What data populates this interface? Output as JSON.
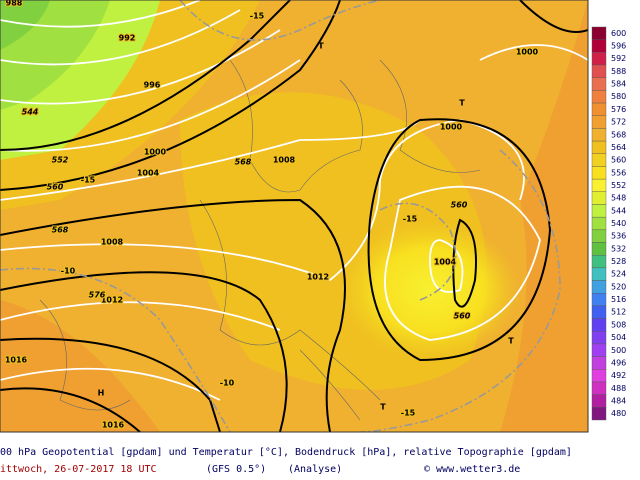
{
  "map": {
    "labels": [
      "988",
      "992",
      "996",
      "1000",
      "1004",
      "1008",
      "1012",
      "1016",
      "1016",
      "1008",
      "1012",
      "1000",
      "1000",
      "1004",
      "544",
      "552",
      "560",
      "568",
      "576",
      "568",
      "560",
      "560",
      "-15",
      "-15",
      "-10",
      "-15",
      "-15",
      "-10",
      "T",
      "T",
      "T",
      "T",
      "H"
    ]
  },
  "colorbar": {
    "levels": [
      600,
      596,
      592,
      588,
      584,
      580,
      576,
      572,
      568,
      564,
      560,
      556,
      552,
      548,
      544,
      540,
      536,
      532,
      528,
      524,
      520,
      516,
      512,
      508,
      504,
      500,
      496,
      492,
      488,
      484,
      480
    ],
    "colors": [
      "#8b0030",
      "#b0003a",
      "#d0204a",
      "#e05050",
      "#e87050",
      "#f08040",
      "#f09030",
      "#f0a030",
      "#f0b030",
      "#f0c020",
      "#f0d020",
      "#f8e020",
      "#f8f030",
      "#e0f030",
      "#c0f040",
      "#a0e040",
      "#80d040",
      "#60c040",
      "#40c080",
      "#40c0c0",
      "#40a0e0",
      "#4080f0",
      "#4060f0",
      "#6040f0",
      "#8040f0",
      "#a040f0",
      "#c040e0",
      "#e040e0",
      "#d030c0",
      "#b020a0",
      "#801880"
    ]
  },
  "caption": {
    "line1": "00 hPa Geopotential [gpdam] und Temperatur [°C], Bodendruck [hPa], relative Topographie [gpdam]",
    "date": "ittwoch, 26-07-2017   18 UTC",
    "model": "(GFS 0.5°)",
    "run": "(Analyse)",
    "credit": "© www.wetter3.de"
  }
}
